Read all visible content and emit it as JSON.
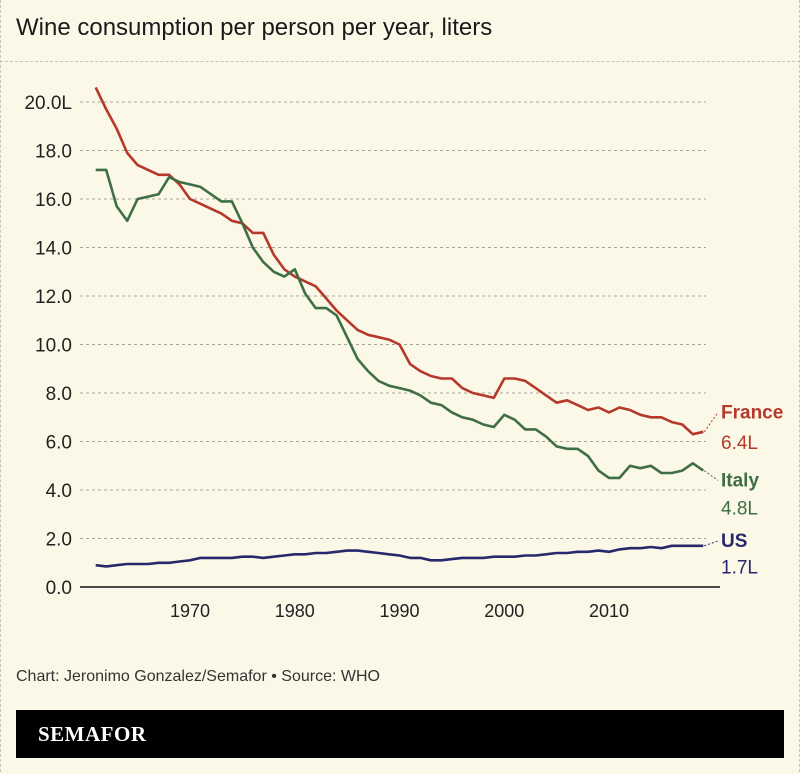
{
  "chart_data": {
    "type": "line",
    "title": "Wine consumption per person per year, liters",
    "xlabel": "",
    "ylabel": "",
    "xlim": [
      1961,
      2019
    ],
    "ylim": [
      0,
      20
    ],
    "grid": true,
    "y_ticks": [
      "0.0",
      "2.0",
      "4.0",
      "6.0",
      "8.0",
      "10.0",
      "12.0",
      "14.0",
      "16.0",
      "18.0",
      "20.0L"
    ],
    "x_ticks": [
      "1970",
      "1980",
      "1990",
      "2000",
      "2010"
    ],
    "x": [
      1961,
      1962,
      1963,
      1964,
      1965,
      1966,
      1967,
      1968,
      1969,
      1970,
      1971,
      1972,
      1973,
      1974,
      1975,
      1976,
      1977,
      1978,
      1979,
      1980,
      1981,
      1982,
      1983,
      1984,
      1985,
      1986,
      1987,
      1988,
      1989,
      1990,
      1991,
      1992,
      1993,
      1994,
      1995,
      1996,
      1997,
      1998,
      1999,
      2000,
      2001,
      2002,
      2003,
      2004,
      2005,
      2006,
      2007,
      2008,
      2009,
      2010,
      2011,
      2012,
      2013,
      2014,
      2015,
      2016,
      2017,
      2018,
      2019
    ],
    "series": [
      {
        "name": "France",
        "end_label": "6.4L",
        "color": "#b5392a",
        "values": [
          20.6,
          19.7,
          18.9,
          17.9,
          17.4,
          17.2,
          17.0,
          17.0,
          16.6,
          16.0,
          15.8,
          15.6,
          15.4,
          15.1,
          15.0,
          14.6,
          14.6,
          13.7,
          13.1,
          12.8,
          12.6,
          12.4,
          11.9,
          11.4,
          11.0,
          10.6,
          10.4,
          10.3,
          10.2,
          10.0,
          9.2,
          8.9,
          8.7,
          8.6,
          8.6,
          8.2,
          8.0,
          7.9,
          7.8,
          8.6,
          8.6,
          8.5,
          8.2,
          7.9,
          7.6,
          7.7,
          7.5,
          7.3,
          7.4,
          7.2,
          7.4,
          7.3,
          7.1,
          7.0,
          7.0,
          6.8,
          6.7,
          6.3,
          6.4
        ]
      },
      {
        "name": "Italy",
        "end_label": "4.8L",
        "color": "#3f6e45",
        "values": [
          17.2,
          17.2,
          15.7,
          15.1,
          16.0,
          16.1,
          16.2,
          16.9,
          16.7,
          16.6,
          16.5,
          16.2,
          15.9,
          15.9,
          15.0,
          14.0,
          13.4,
          13.0,
          12.8,
          13.1,
          12.1,
          11.5,
          11.5,
          11.2,
          10.3,
          9.4,
          8.9,
          8.5,
          8.3,
          8.2,
          8.1,
          7.9,
          7.6,
          7.5,
          7.2,
          7.0,
          6.9,
          6.7,
          6.6,
          7.1,
          6.9,
          6.5,
          6.5,
          6.2,
          5.8,
          5.7,
          5.7,
          5.4,
          4.8,
          4.5,
          4.5,
          5.0,
          4.9,
          5.0,
          4.7,
          4.7,
          4.8,
          5.1,
          4.8
        ]
      },
      {
        "name": "US",
        "end_label": "1.7L",
        "color": "#26296b",
        "values": [
          0.9,
          0.85,
          0.9,
          0.95,
          0.95,
          0.95,
          1.0,
          1.0,
          1.05,
          1.1,
          1.2,
          1.2,
          1.2,
          1.2,
          1.25,
          1.25,
          1.2,
          1.25,
          1.3,
          1.35,
          1.35,
          1.4,
          1.4,
          1.45,
          1.5,
          1.5,
          1.45,
          1.4,
          1.35,
          1.3,
          1.2,
          1.2,
          1.1,
          1.1,
          1.15,
          1.2,
          1.2,
          1.2,
          1.25,
          1.25,
          1.25,
          1.3,
          1.3,
          1.35,
          1.4,
          1.4,
          1.45,
          1.45,
          1.5,
          1.45,
          1.55,
          1.6,
          1.6,
          1.65,
          1.6,
          1.7,
          1.7,
          1.7,
          1.7
        ]
      }
    ]
  },
  "footer": {
    "source": "Chart: Jeronimo Gonzalez/Semafor • Source: WHO",
    "brand": "SEMAFOR"
  },
  "colors": {
    "background": "#fcf8e8",
    "france": "#b5392a",
    "italy": "#3f6e45",
    "us": "#26296b"
  }
}
